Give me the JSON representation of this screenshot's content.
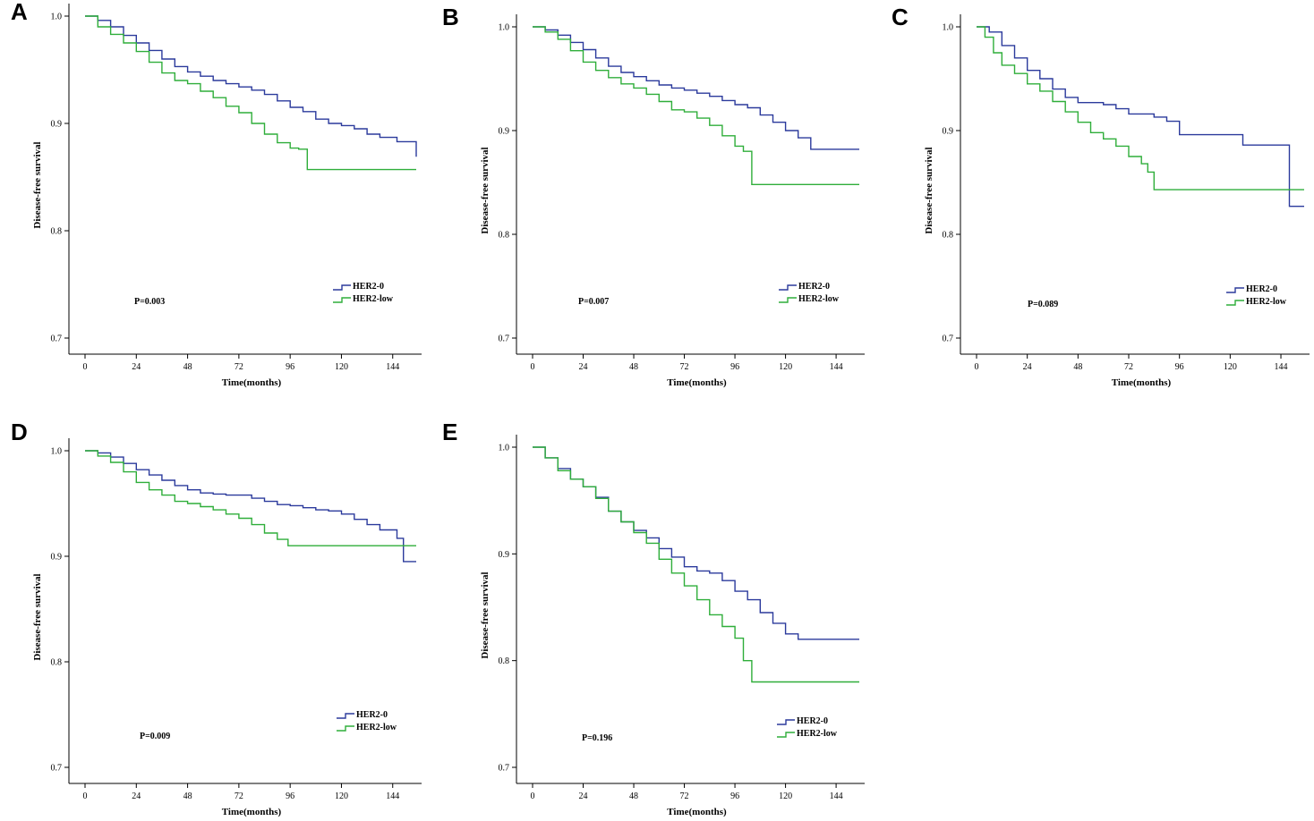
{
  "series_colors": {
    "HER2-0": "#2b3a9c",
    "HER2-low": "#2fae3a"
  },
  "chart_data": [
    {
      "id": "A",
      "type": "line",
      "step": true,
      "xlabel": "Time(months)",
      "ylabel": "Disease-free survival",
      "xticks": [
        "0",
        "24",
        "48",
        "72",
        "96",
        "120",
        "144"
      ],
      "xlim": [
        -7,
        156
      ],
      "yticks": [
        "0.7",
        "0.8",
        "0.9",
        "1.0"
      ],
      "ylim": [
        0.68,
        1.0
      ],
      "pvalue": "P=0.003",
      "legend": [
        "HER2-0",
        "HER2-low"
      ],
      "series": [
        {
          "name": "HER2-0",
          "x": [
            0,
            6,
            12,
            18,
            24,
            30,
            36,
            42,
            48,
            54,
            60,
            66,
            72,
            78,
            84,
            90,
            96,
            102,
            108,
            114,
            120,
            126,
            132,
            138,
            146,
            155
          ],
          "y": [
            1.0,
            0.996,
            0.99,
            0.982,
            0.975,
            0.968,
            0.96,
            0.953,
            0.948,
            0.944,
            0.94,
            0.937,
            0.934,
            0.931,
            0.927,
            0.921,
            0.915,
            0.911,
            0.904,
            0.9,
            0.898,
            0.895,
            0.89,
            0.887,
            0.883,
            0.869
          ]
        },
        {
          "name": "HER2-low",
          "x": [
            0,
            6,
            12,
            18,
            24,
            30,
            36,
            42,
            48,
            54,
            60,
            66,
            72,
            78,
            84,
            90,
            96,
            100,
            104,
            155
          ],
          "y": [
            1.0,
            0.99,
            0.983,
            0.975,
            0.967,
            0.957,
            0.947,
            0.94,
            0.937,
            0.93,
            0.924,
            0.916,
            0.91,
            0.9,
            0.89,
            0.882,
            0.877,
            0.876,
            0.857,
            0.857
          ]
        }
      ]
    },
    {
      "id": "B",
      "type": "line",
      "step": true,
      "xlabel": "Time(months)",
      "ylabel": "Disease-free survival",
      "xticks": [
        "0",
        "24",
        "48",
        "72",
        "96",
        "120",
        "144"
      ],
      "xlim": [
        -7,
        156
      ],
      "yticks": [
        "0.7",
        "0.8",
        "0.9",
        "1.0"
      ],
      "ylim": [
        0.69,
        1.01
      ],
      "pvalue": "P=0.007",
      "legend": [
        "HER2-0",
        "HER2-low"
      ],
      "series": [
        {
          "name": "HER2-0",
          "x": [
            0,
            6,
            12,
            18,
            24,
            30,
            36,
            42,
            48,
            54,
            60,
            66,
            72,
            78,
            84,
            90,
            96,
            102,
            108,
            114,
            120,
            126,
            132,
            155
          ],
          "y": [
            1.0,
            0.997,
            0.992,
            0.985,
            0.978,
            0.97,
            0.962,
            0.956,
            0.952,
            0.948,
            0.944,
            0.941,
            0.939,
            0.936,
            0.933,
            0.929,
            0.925,
            0.922,
            0.915,
            0.908,
            0.9,
            0.893,
            0.882,
            0.882
          ]
        },
        {
          "name": "HER2-low",
          "x": [
            0,
            6,
            12,
            18,
            24,
            30,
            36,
            42,
            48,
            54,
            60,
            66,
            72,
            78,
            84,
            90,
            96,
            100,
            104,
            155
          ],
          "y": [
            1.0,
            0.995,
            0.988,
            0.977,
            0.966,
            0.958,
            0.951,
            0.945,
            0.941,
            0.935,
            0.928,
            0.92,
            0.918,
            0.912,
            0.905,
            0.895,
            0.885,
            0.88,
            0.848,
            0.848
          ]
        }
      ]
    },
    {
      "id": "C",
      "type": "line",
      "step": true,
      "xlabel": "Time(months)",
      "ylabel": "Disease-free survival",
      "xticks": [
        "0",
        "24",
        "48",
        "72",
        "96",
        "120",
        "144"
      ],
      "xlim": [
        -7,
        156
      ],
      "yticks": [
        "0.7",
        "0.8",
        "0.9",
        "1.0"
      ],
      "ylim": [
        0.68,
        1.0
      ],
      "pvalue": "P=0.089",
      "legend": [
        "HER2-0",
        "HER2-low"
      ],
      "series": [
        {
          "name": "HER2-0",
          "x": [
            0,
            6,
            12,
            18,
            24,
            30,
            36,
            42,
            48,
            54,
            60,
            66,
            72,
            78,
            84,
            90,
            96,
            102,
            108,
            114,
            126,
            132,
            138,
            146,
            148,
            155
          ],
          "y": [
            1.0,
            0.995,
            0.982,
            0.97,
            0.958,
            0.95,
            0.94,
            0.932,
            0.927,
            0.927,
            0.925,
            0.921,
            0.916,
            0.916,
            0.913,
            0.909,
            0.896,
            0.896,
            0.896,
            0.896,
            0.886,
            0.886,
            0.886,
            0.886,
            0.827,
            0.827
          ]
        },
        {
          "name": "HER2-low",
          "x": [
            0,
            4,
            8,
            12,
            18,
            24,
            30,
            36,
            42,
            48,
            54,
            60,
            66,
            72,
            78,
            81,
            84,
            155
          ],
          "y": [
            1.0,
            0.99,
            0.975,
            0.963,
            0.955,
            0.945,
            0.938,
            0.928,
            0.918,
            0.908,
            0.898,
            0.892,
            0.885,
            0.875,
            0.868,
            0.86,
            0.843,
            0.843
          ]
        }
      ]
    },
    {
      "id": "D",
      "type": "line",
      "step": true,
      "xlabel": "Time(months)",
      "ylabel": "Disease-free survival",
      "xticks": [
        "0",
        "24",
        "48",
        "72",
        "96",
        "120",
        "144"
      ],
      "xlim": [
        -7,
        156
      ],
      "yticks": [
        "0.7",
        "0.8",
        "0.9",
        "1.0"
      ],
      "ylim": [
        0.69,
        1.01
      ],
      "pvalue": "P=0.009",
      "legend": [
        "HER2-0",
        "HER2-low"
      ],
      "series": [
        {
          "name": "HER2-0",
          "x": [
            0,
            6,
            12,
            18,
            24,
            30,
            36,
            42,
            48,
            54,
            60,
            66,
            72,
            78,
            84,
            90,
            96,
            102,
            108,
            114,
            120,
            126,
            132,
            138,
            146,
            149,
            155
          ],
          "y": [
            1.0,
            0.998,
            0.994,
            0.988,
            0.982,
            0.977,
            0.972,
            0.967,
            0.963,
            0.96,
            0.959,
            0.958,
            0.958,
            0.955,
            0.952,
            0.949,
            0.948,
            0.946,
            0.944,
            0.943,
            0.94,
            0.935,
            0.93,
            0.925,
            0.917,
            0.895,
            0.895
          ]
        },
        {
          "name": "HER2-low",
          "x": [
            0,
            6,
            12,
            18,
            24,
            30,
            36,
            42,
            48,
            54,
            60,
            66,
            72,
            78,
            84,
            90,
            95,
            155
          ],
          "y": [
            1.0,
            0.995,
            0.989,
            0.98,
            0.97,
            0.963,
            0.958,
            0.952,
            0.95,
            0.947,
            0.944,
            0.94,
            0.936,
            0.93,
            0.922,
            0.916,
            0.91,
            0.91
          ]
        }
      ]
    },
    {
      "id": "E",
      "type": "line",
      "step": true,
      "xlabel": "Time(months)",
      "ylabel": "Disease-free survival",
      "xticks": [
        "0",
        "24",
        "48",
        "72",
        "96",
        "120",
        "144"
      ],
      "xlim": [
        -7,
        156
      ],
      "yticks": [
        "0.7",
        "0.8",
        "0.9",
        "1.0"
      ],
      "ylim": [
        0.69,
        1.01
      ],
      "pvalue": "P=0.196",
      "legend": [
        "HER2-0",
        "HER2-low"
      ],
      "series": [
        {
          "name": "HER2-0",
          "x": [
            0,
            6,
            12,
            18,
            24,
            30,
            36,
            42,
            48,
            54,
            60,
            66,
            72,
            78,
            84,
            90,
            96,
            102,
            108,
            114,
            120,
            126,
            155
          ],
          "y": [
            1.0,
            0.99,
            0.98,
            0.97,
            0.963,
            0.953,
            0.94,
            0.93,
            0.922,
            0.915,
            0.905,
            0.897,
            0.888,
            0.884,
            0.882,
            0.875,
            0.865,
            0.857,
            0.845,
            0.835,
            0.825,
            0.82,
            0.82
          ]
        },
        {
          "name": "HER2-low",
          "x": [
            0,
            6,
            12,
            18,
            24,
            30,
            36,
            42,
            48,
            54,
            60,
            66,
            72,
            78,
            84,
            90,
            96,
            100,
            104,
            155
          ],
          "y": [
            1.0,
            0.99,
            0.978,
            0.97,
            0.963,
            0.952,
            0.94,
            0.93,
            0.92,
            0.91,
            0.895,
            0.882,
            0.87,
            0.857,
            0.843,
            0.832,
            0.821,
            0.8,
            0.78,
            0.78
          ]
        }
      ]
    }
  ]
}
